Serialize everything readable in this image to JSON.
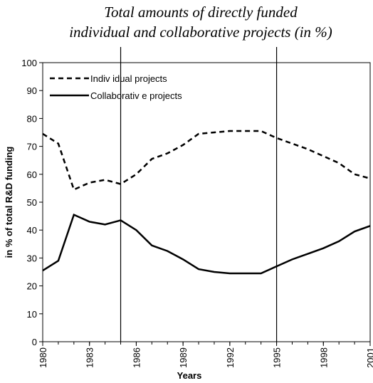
{
  "chart_data": {
    "type": "line",
    "title": [
      "Total amounts of directly funded",
      "individual and collaborative projects (in %)"
    ],
    "x_label": "Years",
    "y_label": "in % of total R&D funding",
    "x": [
      1980,
      1981,
      1982,
      1983,
      1984,
      1985,
      1986,
      1987,
      1988,
      1989,
      1990,
      1991,
      1992,
      1993,
      1994,
      1995,
      1996,
      1997,
      1998,
      1999,
      2000,
      2001
    ],
    "series": [
      {
        "name": "Indiv idual projects",
        "color": "#000",
        "dash": true,
        "values": [
          74.5,
          71,
          54.5,
          57,
          58,
          56.5,
          60,
          65.5,
          67.5,
          70.5,
          74.5,
          75,
          75.5,
          75.5,
          75.5,
          73,
          71,
          69,
          66.5,
          64,
          60,
          58.5
        ]
      },
      {
        "name": "Collaborativ e projects",
        "color": "#000",
        "dash": false,
        "values": [
          25.5,
          29,
          45.5,
          43,
          42,
          43.5,
          40,
          34.5,
          32.5,
          29.5,
          26,
          25,
          24.5,
          24.5,
          24.5,
          27,
          29.5,
          31.5,
          33.5,
          36,
          39.5,
          41.5
        ]
      }
    ],
    "xlim": [
      1980,
      2001
    ],
    "xticks": [
      1980,
      1983,
      1986,
      1989,
      1992,
      1995,
      1998,
      2001
    ],
    "ylim": [
      0,
      100
    ],
    "yticks": [
      0,
      10,
      20,
      30,
      40,
      50,
      60,
      70,
      80,
      90,
      100
    ],
    "vlines": [
      1985,
      1995
    ],
    "legend": "upper left"
  }
}
